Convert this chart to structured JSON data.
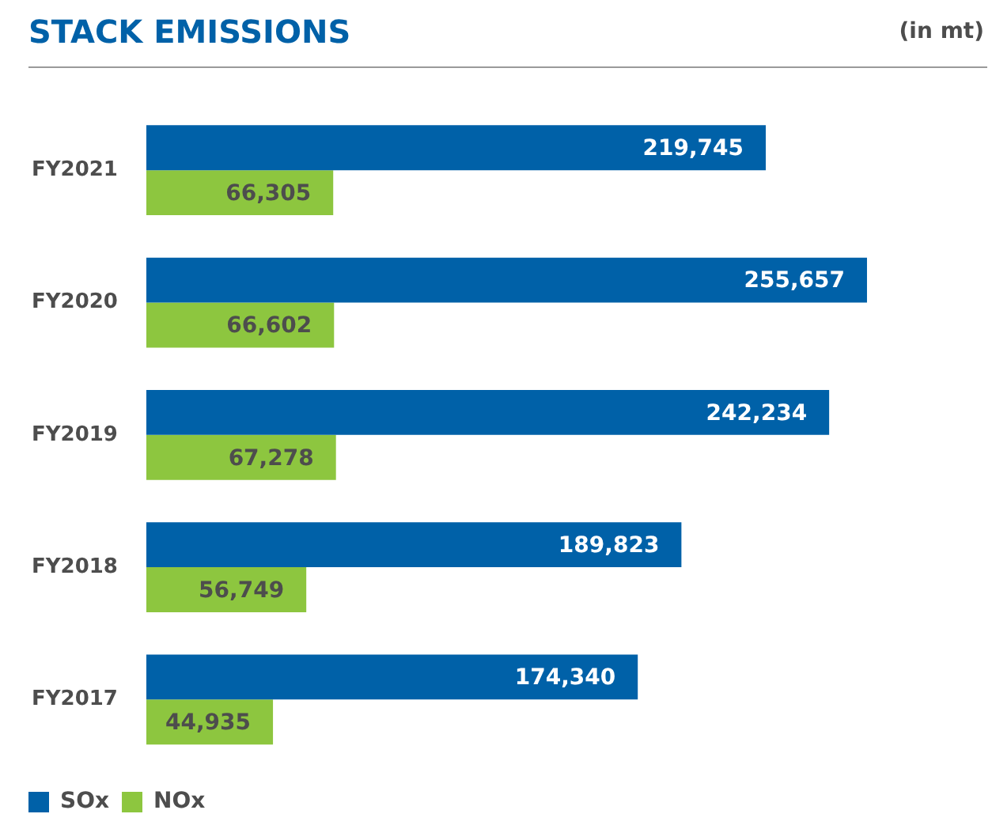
{
  "chart_data": {
    "type": "bar",
    "title": "STACK EMISSIONS",
    "subtitle": "(in mt)",
    "orientation": "horizontal",
    "categories": [
      "FY2021",
      "FY2020",
      "FY2019",
      "FY2018",
      "FY2017"
    ],
    "series": [
      {
        "name": "SOx",
        "color": "#0061a8",
        "values": [
          219745,
          255657,
          242234,
          189823,
          174340
        ],
        "value_labels": [
          "219,745",
          "255,657",
          "242,234",
          "189,823",
          "174,340"
        ]
      },
      {
        "name": "NOx",
        "color": "#8dc63f",
        "values": [
          66305,
          66602,
          67278,
          56749,
          44935
        ],
        "value_labels": [
          "66,305",
          "66,602",
          "67,278",
          "56,749",
          "44,935"
        ]
      }
    ],
    "legend": "bottom left"
  }
}
